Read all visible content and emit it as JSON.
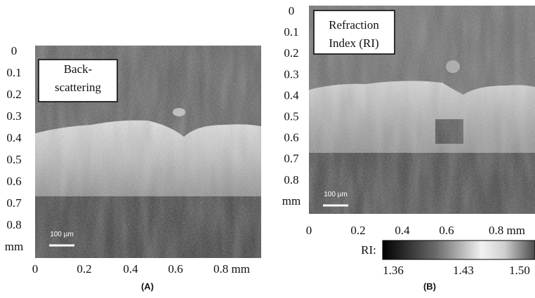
{
  "panels": [
    {
      "label_lines": [
        "Back-",
        "scattering"
      ],
      "y_ticks": [
        "0",
        "0.1",
        "0.2",
        "0.3",
        "0.4",
        "0.5",
        "0.6",
        "0.7",
        "0.8",
        "mm"
      ],
      "x_ticks": [
        "0",
        "0.2",
        "0.4",
        "0.6",
        "0.8 mm"
      ],
      "scale_bar": "100 µm",
      "caption": "(A)"
    },
    {
      "label_lines": [
        "Refraction",
        "Index (RI)"
      ],
      "y_ticks": [
        "0",
        "0.1",
        "0.2",
        "0.3",
        "0.4",
        "0.5",
        "0.6",
        "0.7",
        "0.8",
        "mm"
      ],
      "x_ticks": [
        "0",
        "0.2",
        "0.4",
        "0.6",
        "0.8 mm"
      ],
      "scale_bar": "100 µm",
      "caption": "(B)",
      "colorbar": {
        "label": "RI:",
        "ticks": [
          "1.36",
          "1.43",
          "1.50"
        ]
      }
    }
  ]
}
